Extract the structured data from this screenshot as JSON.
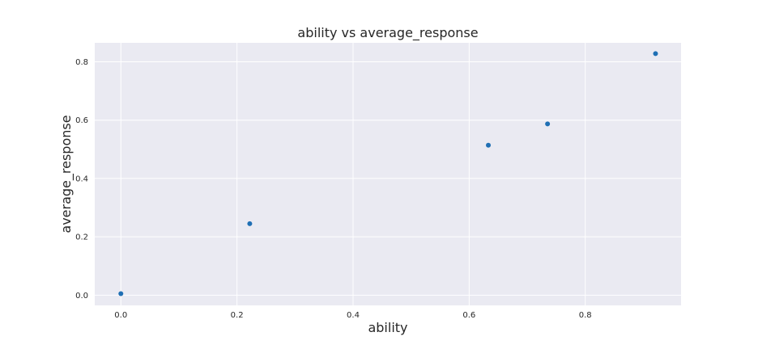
{
  "chart_data": {
    "type": "scatter",
    "title": "ability vs average_response",
    "xlabel": "ability",
    "ylabel": "average_response",
    "xlim": [
      -0.045,
      0.965
    ],
    "ylim": [
      -0.035,
      0.865
    ],
    "xticks": [
      0.0,
      0.2,
      0.4,
      0.6,
      0.8
    ],
    "yticks": [
      0.0,
      0.2,
      0.4,
      0.6,
      0.8
    ],
    "xtick_labels": [
      "0.0",
      "0.2",
      "0.4",
      "0.6",
      "0.8"
    ],
    "ytick_labels": [
      "0.0",
      "0.2",
      "0.4",
      "0.6",
      "0.8"
    ],
    "grid": true,
    "legend": "none",
    "colors": {
      "point": "#1f6fb4",
      "plot_bg": "#eaeaf2",
      "grid": "#ffffff"
    },
    "series": [
      {
        "x": [
          0.0,
          0.222,
          0.633,
          0.735,
          0.921
        ],
        "y": [
          0.005,
          0.245,
          0.514,
          0.587,
          0.828
        ]
      }
    ]
  }
}
